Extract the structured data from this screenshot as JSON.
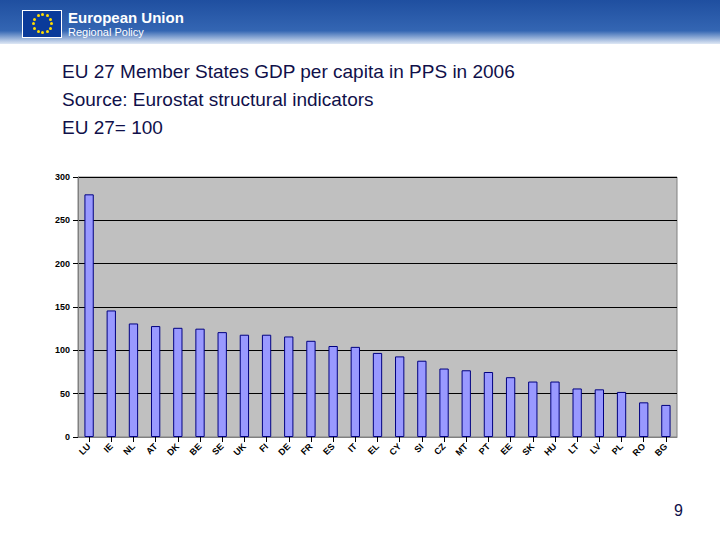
{
  "header": {
    "organisation": "European Union",
    "unit": "Regional Policy"
  },
  "page_number": "9",
  "chart_data": {
    "type": "bar",
    "title": "EU 27 Member States GDP per capita in PPS in 2006",
    "subtitle": [
      "Source: Eurostat structural indicators",
      "EU 27= 100"
    ],
    "categories": [
      "LU",
      "IE",
      "NL",
      "AT",
      "DK",
      "BE",
      "SE",
      "UK",
      "FI",
      "DE",
      "FR",
      "ES",
      "IT",
      "EL",
      "CY",
      "SI",
      "CZ",
      "MT",
      "PT",
      "EE",
      "SK",
      "HU",
      "LT",
      "LV",
      "PL",
      "RO",
      "BG"
    ],
    "values": [
      280,
      146,
      131,
      128,
      126,
      125,
      121,
      118,
      118,
      116,
      111,
      105,
      104,
      97,
      93,
      88,
      79,
      77,
      75,
      69,
      64,
      64,
      56,
      55,
      52,
      40,
      37
    ],
    "color": "#9999ff",
    "ylim": [
      0,
      300
    ],
    "yticks": [
      0,
      50,
      100,
      150,
      200,
      250,
      300
    ],
    "grid": true
  }
}
